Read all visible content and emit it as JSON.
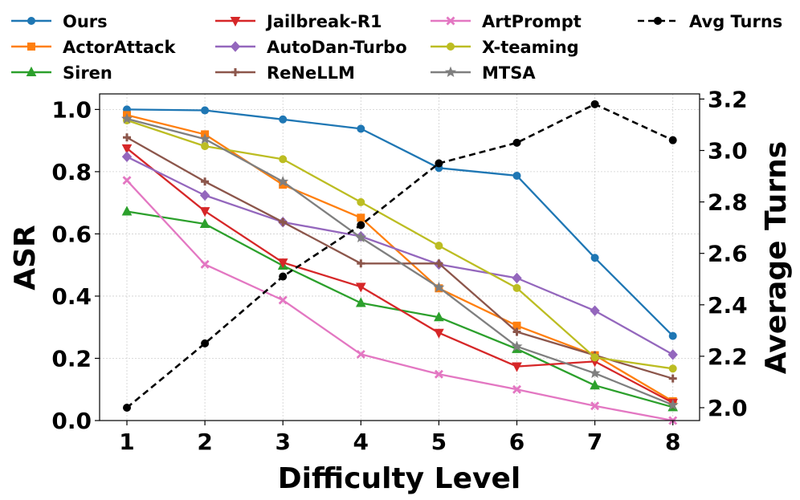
{
  "chart_data": {
    "type": "line",
    "title": "",
    "xlabel": "Difficulty Level",
    "ylabel": "ASR",
    "y2label": "Average Turns",
    "x": [
      1,
      2,
      3,
      4,
      5,
      6,
      7,
      8
    ],
    "xticks": [
      "1",
      "2",
      "3",
      "4",
      "5",
      "6",
      "7",
      "8"
    ],
    "ylim": [
      0.0,
      1.05
    ],
    "yticks": [
      "0.0",
      "0.2",
      "0.4",
      "0.6",
      "0.8",
      "1.0"
    ],
    "y2lim": [
      1.95,
      3.22
    ],
    "y2ticks": [
      "2.0",
      "2.2",
      "2.4",
      "2.6",
      "2.8",
      "3.0",
      "3.2"
    ],
    "grid": true,
    "legend_position": "top",
    "series": [
      {
        "name": "Ours",
        "color": "#1f77b4",
        "marker": "circle",
        "axis": "left",
        "dashed": false,
        "values": [
          1.0,
          0.997,
          0.968,
          0.938,
          0.812,
          0.787,
          0.523,
          0.272
        ]
      },
      {
        "name": "ActorAttack",
        "color": "#ff7f0e",
        "marker": "square",
        "axis": "left",
        "dashed": false,
        "values": [
          0.982,
          0.92,
          0.758,
          0.652,
          0.425,
          0.305,
          0.21,
          0.062
        ]
      },
      {
        "name": "Siren",
        "color": "#2ca02c",
        "marker": "triangle-up",
        "axis": "left",
        "dashed": false,
        "values": [
          0.672,
          0.632,
          0.498,
          0.378,
          0.332,
          0.23,
          0.113,
          0.043
        ]
      },
      {
        "name": "Jailbreak-R1",
        "color": "#d62728",
        "marker": "triangle-down",
        "axis": "left",
        "dashed": false,
        "values": [
          0.875,
          0.673,
          0.508,
          0.43,
          0.282,
          0.174,
          0.19,
          0.057
        ]
      },
      {
        "name": "AutoDan-Turbo",
        "color": "#9467bd",
        "marker": "diamond",
        "axis": "left",
        "dashed": false,
        "values": [
          0.848,
          0.724,
          0.638,
          0.592,
          0.502,
          0.458,
          0.353,
          0.212
        ]
      },
      {
        "name": "ReNeLLM",
        "color": "#8c564b",
        "marker": "plus",
        "axis": "left",
        "dashed": false,
        "values": [
          0.91,
          0.768,
          0.638,
          0.505,
          0.505,
          0.285,
          0.21,
          0.135
        ]
      },
      {
        "name": "ArtPrompt",
        "color": "#e377c2",
        "marker": "x",
        "axis": "left",
        "dashed": false,
        "values": [
          0.772,
          0.502,
          0.387,
          0.213,
          0.149,
          0.1,
          0.047,
          0.0
        ]
      },
      {
        "name": "X-teaming",
        "color": "#bcbd22",
        "marker": "circle",
        "axis": "left",
        "dashed": false,
        "values": [
          0.965,
          0.882,
          0.84,
          0.702,
          0.562,
          0.426,
          0.203,
          0.167
        ]
      },
      {
        "name": "MTSA",
        "color": "#7f7f7f",
        "marker": "star",
        "axis": "left",
        "dashed": false,
        "values": [
          0.97,
          0.905,
          0.768,
          0.588,
          0.428,
          0.238,
          0.152,
          0.05
        ]
      },
      {
        "name": "Avg Turns",
        "color": "#000000",
        "marker": "circle",
        "axis": "right",
        "dashed": true,
        "values": [
          2.0,
          2.25,
          2.51,
          2.71,
          2.95,
          3.03,
          3.18,
          3.04
        ]
      }
    ]
  }
}
